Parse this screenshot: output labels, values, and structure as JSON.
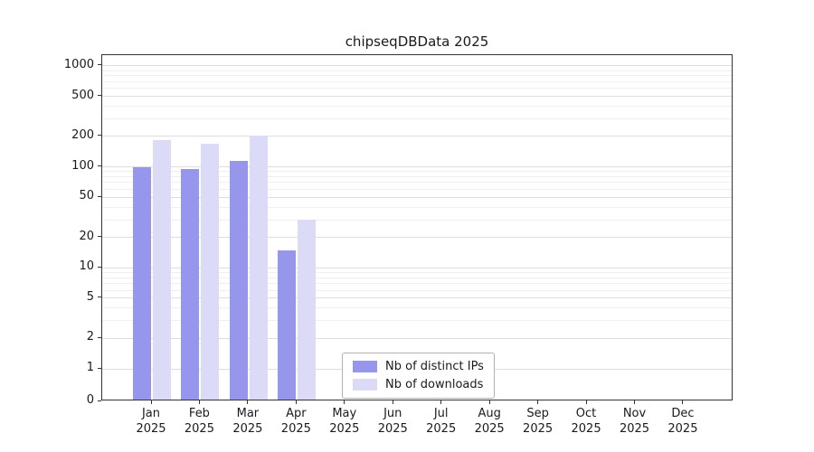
{
  "chart_data": {
    "type": "bar",
    "title": "chipseqDBData 2025",
    "y_scale": "log",
    "grid": true,
    "legend_position": "inside-bottom-center",
    "categories": [
      "Jan",
      "Feb",
      "Mar",
      "Apr",
      "May",
      "Jun",
      "Jul",
      "Aug",
      "Sep",
      "Oct",
      "Nov",
      "Dec"
    ],
    "year_label": "2025",
    "y_ticks": [
      0,
      1,
      2,
      5,
      10,
      20,
      50,
      100,
      200,
      500,
      1000
    ],
    "ylim": [
      0,
      1280
    ],
    "series": [
      {
        "name": "Nb of distinct IPs",
        "color": "#9696ec",
        "values": [
          100,
          95,
          115,
          15,
          0,
          0,
          0,
          0,
          0,
          0,
          0,
          0
        ]
      },
      {
        "name": "Nb of downloads",
        "color": "#dbdbf8",
        "values": [
          185,
          170,
          205,
          30,
          0,
          0,
          0,
          0,
          0,
          0,
          0,
          0
        ]
      }
    ]
  }
}
